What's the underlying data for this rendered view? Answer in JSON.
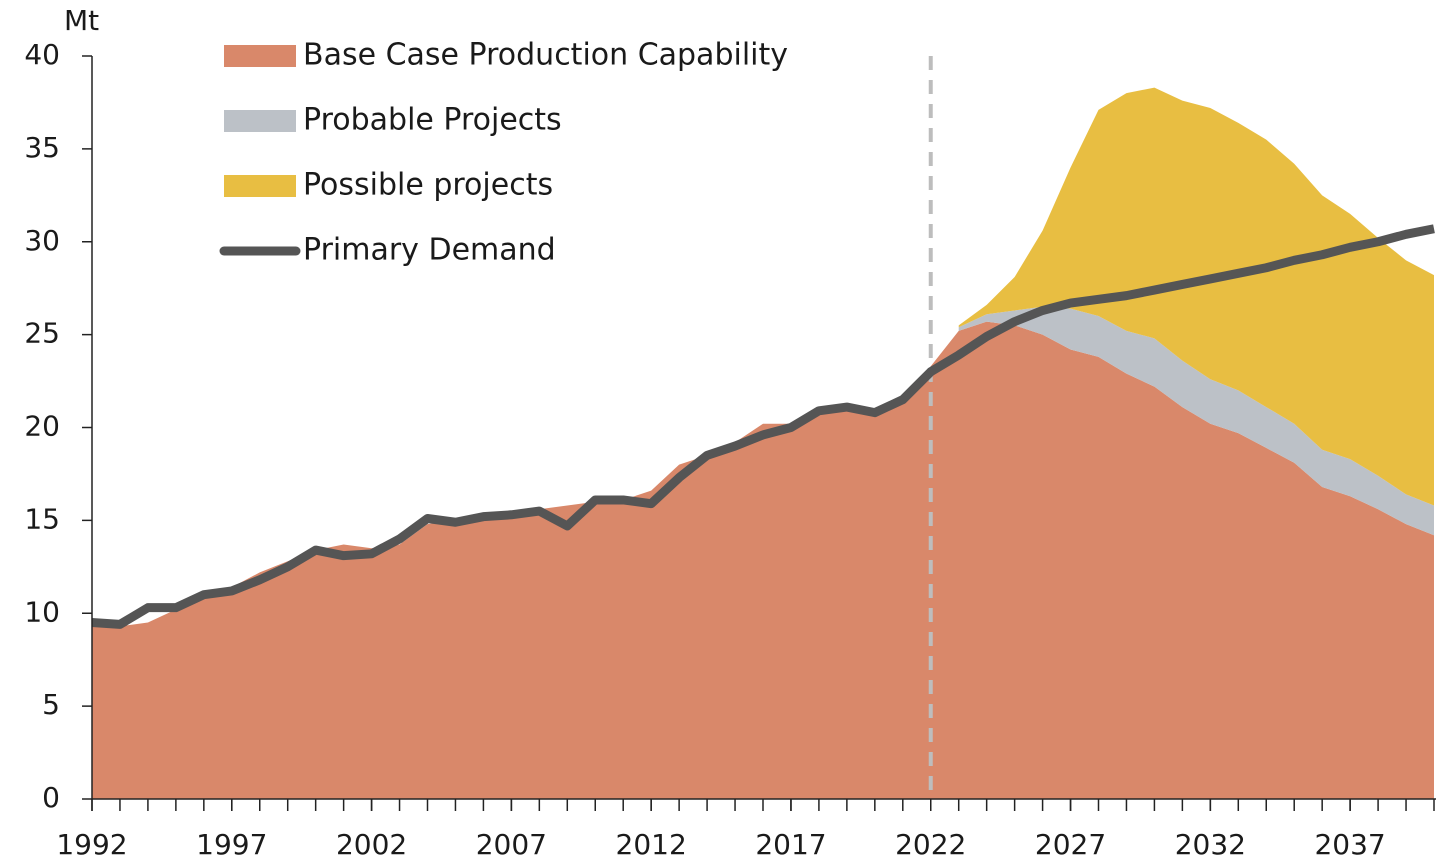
{
  "chart_data": {
    "type": "stacked_area_line",
    "y_label": "Mt",
    "x": [
      1992,
      1993,
      1994,
      1995,
      1996,
      1997,
      1998,
      1999,
      2000,
      2001,
      2002,
      2003,
      2004,
      2005,
      2006,
      2007,
      2008,
      2009,
      2010,
      2011,
      2012,
      2013,
      2014,
      2015,
      2016,
      2017,
      2018,
      2019,
      2020,
      2021,
      2022,
      2023,
      2024,
      2025,
      2026,
      2027,
      2028,
      2029,
      2030,
      2031,
      2032,
      2033,
      2034,
      2035,
      2036,
      2037,
      2038,
      2039,
      2040
    ],
    "series": [
      {
        "name": "Base Case Production Capability",
        "kind": "area",
        "color": "#d9886a",
        "values": [
          9.3,
          9.3,
          9.5,
          10.2,
          10.9,
          11.4,
          12.2,
          12.8,
          13.4,
          13.7,
          13.5,
          13.7,
          14.8,
          15.0,
          15.3,
          15.4,
          15.6,
          15.8,
          16.0,
          16.1,
          16.6,
          18.0,
          18.5,
          19.2,
          20.2,
          20.2,
          21.0,
          21.2,
          21.0,
          21.6,
          23.3,
          25.2,
          25.7,
          25.5,
          25.0,
          24.2,
          23.8,
          22.9,
          22.2,
          21.1,
          20.2,
          19.7,
          18.9,
          18.1,
          16.8,
          16.3,
          15.6,
          14.8,
          14.2
        ]
      },
      {
        "name": "Probable Projects",
        "kind": "area",
        "color": "#bcc1c7",
        "values": [
          null,
          null,
          null,
          null,
          null,
          null,
          null,
          null,
          null,
          null,
          null,
          null,
          null,
          null,
          null,
          null,
          null,
          null,
          null,
          null,
          null,
          null,
          null,
          null,
          null,
          null,
          null,
          null,
          null,
          null,
          null,
          0.2,
          0.4,
          0.8,
          1.5,
          2.2,
          2.2,
          2.3,
          2.6,
          2.5,
          2.4,
          2.3,
          2.2,
          2.1,
          2.0,
          2.0,
          1.8,
          1.6,
          1.6
        ]
      },
      {
        "name": "Possible projects",
        "kind": "area",
        "color": "#e8be42",
        "values": [
          null,
          null,
          null,
          null,
          null,
          null,
          null,
          null,
          null,
          null,
          null,
          null,
          null,
          null,
          null,
          null,
          null,
          null,
          null,
          null,
          null,
          null,
          null,
          null,
          null,
          null,
          null,
          null,
          null,
          null,
          null,
          0.1,
          0.5,
          1.8,
          4.1,
          7.6,
          11.1,
          12.8,
          13.5,
          14.0,
          14.6,
          14.4,
          14.4,
          14.0,
          13.7,
          13.2,
          12.8,
          12.6,
          12.4
        ]
      },
      {
        "name": "Primary Demand",
        "kind": "line",
        "color": "#555555",
        "values": [
          9.5,
          9.4,
          10.3,
          10.3,
          11.0,
          11.2,
          11.8,
          12.5,
          13.4,
          13.1,
          13.2,
          14.0,
          15.1,
          14.9,
          15.2,
          15.3,
          15.5,
          14.7,
          16.1,
          16.1,
          15.9,
          17.3,
          18.5,
          19.0,
          19.6,
          20.0,
          20.9,
          21.1,
          20.8,
          21.5,
          23.0,
          23.9,
          24.9,
          25.7,
          26.3,
          26.7,
          26.9,
          27.1,
          27.4,
          27.7,
          28.0,
          28.3,
          28.6,
          29.0,
          29.3,
          29.7,
          30.0,
          30.4,
          30.7
        ]
      }
    ],
    "xlim": [
      1992,
      2040
    ],
    "xticks": [
      1992,
      1997,
      2002,
      2007,
      2012,
      2017,
      2022,
      2027,
      2032,
      2037
    ],
    "ylim": [
      0,
      40
    ],
    "yticks": [
      0,
      5,
      10,
      15,
      20,
      25,
      30,
      35,
      40
    ],
    "reference_line_x": 2022,
    "legend": "top-left",
    "grid": false
  }
}
